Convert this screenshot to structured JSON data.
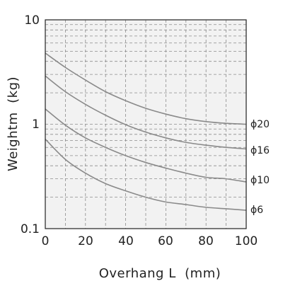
{
  "chart_data": {
    "type": "line",
    "xlabel": "Overhang L  (mm)",
    "ylabel": "Weightm  (kg)",
    "xlim": [
      0,
      100
    ],
    "ylim": [
      0.1,
      10
    ],
    "yscale": "log",
    "x_ticks": [
      "0",
      "20",
      "40",
      "60",
      "80",
      "100"
    ],
    "y_ticks": [
      "10",
      "1",
      "0.1"
    ],
    "grid": true,
    "x": [
      0,
      10,
      20,
      30,
      40,
      50,
      60,
      70,
      80,
      90,
      100
    ],
    "series": [
      {
        "name": "ϕ20",
        "values": [
          4.8,
          3.5,
          2.65,
          2.05,
          1.68,
          1.42,
          1.25,
          1.13,
          1.06,
          1.02,
          1.0
        ]
      },
      {
        "name": "ϕ16",
        "values": [
          2.9,
          2.05,
          1.55,
          1.22,
          0.99,
          0.84,
          0.74,
          0.67,
          0.63,
          0.6,
          0.58
        ]
      },
      {
        "name": "ϕ10",
        "values": [
          1.4,
          0.98,
          0.74,
          0.6,
          0.5,
          0.43,
          0.38,
          0.34,
          0.31,
          0.3,
          0.28
        ]
      },
      {
        "name": "ϕ6",
        "values": [
          0.72,
          0.46,
          0.34,
          0.27,
          0.23,
          0.2,
          0.18,
          0.17,
          0.16,
          0.155,
          0.15
        ]
      }
    ],
    "colors": {
      "curve": "#8a8a8a",
      "plot_bg": "#f2f2f2",
      "grid": "#8c8c8c",
      "frame": "#222222"
    }
  }
}
